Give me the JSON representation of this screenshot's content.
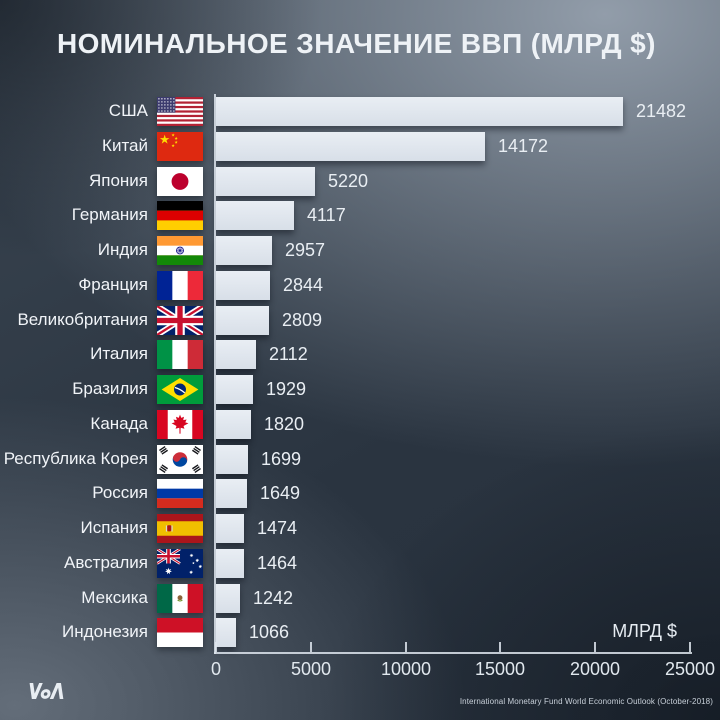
{
  "title": "НОМИНАЛЬНОЕ ЗНАЧЕНИЕ ВВП (МЛРД $)",
  "chart_data": {
    "type": "bar",
    "orientation": "horizontal",
    "title": "НОМИНАЛЬНОЕ ЗНАЧЕНИЕ ВВП (МЛРД $)",
    "xlabel": "МЛРД $",
    "ylabel": "",
    "xlim": [
      0,
      25000
    ],
    "x_ticks": [
      0,
      5000,
      10000,
      15000,
      20000,
      25000
    ],
    "grid": false,
    "legend": "none",
    "categories": [
      "США",
      "Китай",
      "Япония",
      "Германия",
      "Индия",
      "Франция",
      "Великобритания",
      "Италия",
      "Бразилия",
      "Канада",
      "Республика Корея",
      "Россия",
      "Испания",
      "Австралия",
      "Мексика",
      "Индонезия"
    ],
    "values": [
      21482,
      14172,
      5220,
      4117,
      2957,
      2844,
      2809,
      2112,
      1929,
      1820,
      1699,
      1649,
      1474,
      1464,
      1242,
      1066
    ],
    "flag_codes": [
      "us",
      "cn",
      "jp",
      "de",
      "in",
      "fr",
      "gb",
      "it",
      "br",
      "ca",
      "kr",
      "ru",
      "es",
      "au",
      "mx",
      "id"
    ]
  },
  "footer": {
    "source": "International Monetary Fund World Economic Outlook (October-2018)",
    "logo": "VOA"
  },
  "colors": {
    "bar": "#dfe5ec",
    "axis": "#dee5ed",
    "text_primary": "#f1f4f8",
    "text_secondary": "#e1e8ee",
    "background_light": "#97a2af",
    "background_dark": "#1d2732"
  }
}
